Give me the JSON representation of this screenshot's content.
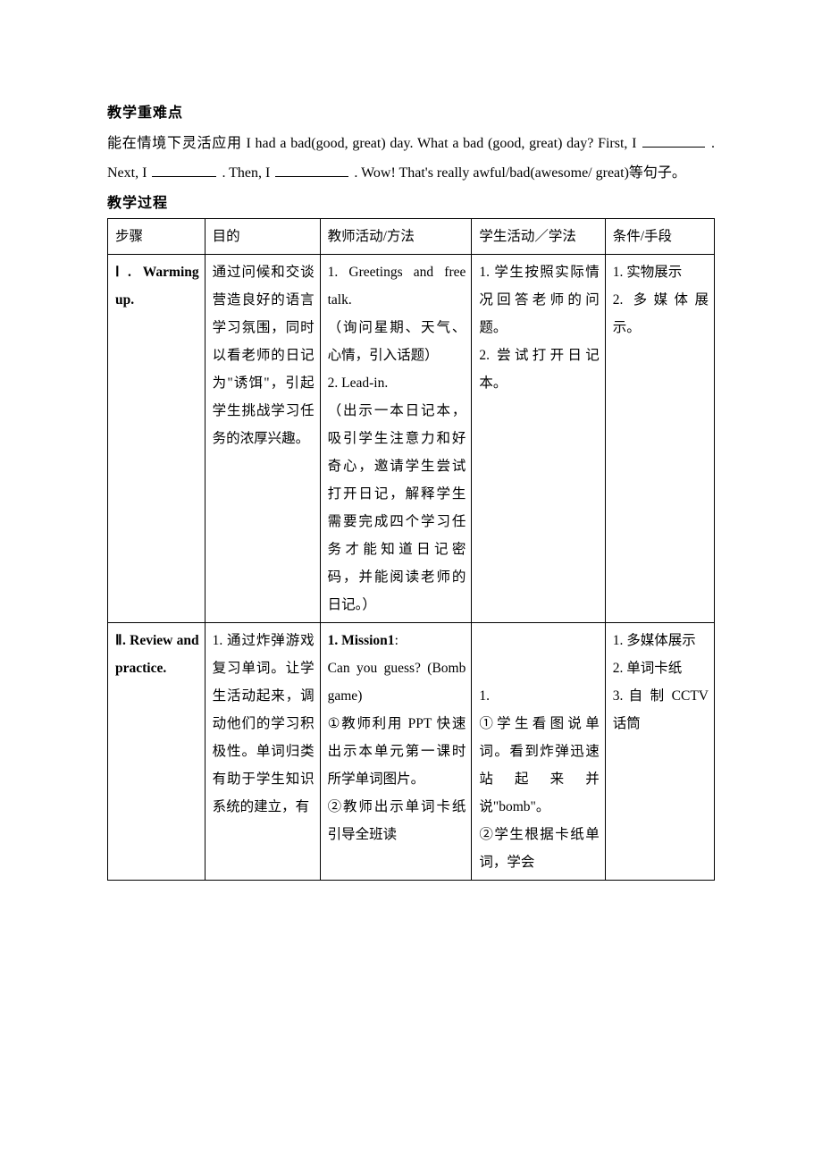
{
  "headings": {
    "key_points": "教学重难点",
    "process": "教学过程"
  },
  "key_points_paragraph": {
    "prefix": "能在情境下灵活应用 I had a bad(good, great) day. What a bad (good, great) day? First, I ",
    "mid1": ".　Next, I ",
    "mid2": ". Then, I ",
    "tail": ". Wow! That's really awful/bad(awesome/ great)等句子。"
  },
  "blanks": {
    "w1": 70,
    "w2": 72,
    "w3": 82
  },
  "table": {
    "header": {
      "step": "步骤",
      "purpose": "目的",
      "teacher": "教师活动/方法",
      "student": "学生活动／学法",
      "condition": "条件/手段"
    },
    "rows": [
      {
        "step_roman": "Ⅰ",
        "step_en": ". Warming up.",
        "purpose": "通过问候和交谈营造良好的语言学习氛围，同时以看老师的日记为\"诱饵\"，引起学生挑战学习任务的浓厚兴趣。",
        "teacher": "1. Greetings and free talk.\n（询问星期、天气、心情，引入话题）\n2. Lead-in.\n（出示一本日记本，吸引学生注意力和好奇心，邀请学生尝试打开日记，解释学生需要完成四个学习任务才能知道日记密码，并能阅读老师的日记。）",
        "student": "1. 学生按照实际情况回答老师的问题。\n2. 尝试打开日记本。",
        "condition": "1. 实物展示\n2. 多媒体展示。"
      },
      {
        "step_roman": "Ⅱ",
        "step_en": ". Review and practice.",
        "purpose": "1. 通过炸弹游戏复习单词。让学生活动起来，调动他们的学习积极性。单词归类有助于学生知识系统的建立，有",
        "teacher_prefix_bold": "1. Mission1",
        "teacher_rest": ":\nCan you guess? (Bomb game)\n①教师利用 PPT 快速出示本单元第一课时所学单词图片。\n②教师出示单词卡纸引导全班读",
        "student": "\n\n1.\n①学生看图说单词。看到炸弹迅速站起来并说\"bomb\"。\n②学生根据卡纸单词，学会",
        "condition": "1. 多媒体展示\n2. 单词卡纸\n3. 自 制 CCTV 话筒"
      }
    ]
  },
  "colors": {
    "text": "#000000",
    "background": "#ffffff",
    "border": "#000000"
  }
}
